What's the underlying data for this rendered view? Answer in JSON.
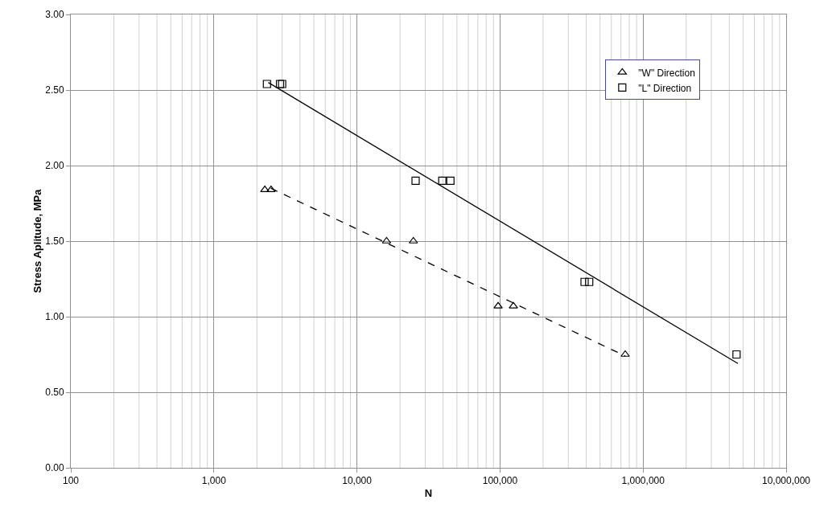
{
  "chart_data": {
    "type": "scatter",
    "xlabel": "N",
    "ylabel": "Stress Aplitude, MPa",
    "log": "x",
    "grid": true,
    "legend": "top right",
    "xlim": [
      100,
      10000000
    ],
    "xticks": [
      {
        "value": 100,
        "label": "100"
      },
      {
        "value": 1000,
        "label": "1,000"
      },
      {
        "value": 10000,
        "label": "10,000"
      },
      {
        "value": 100000,
        "label": "100,000"
      },
      {
        "value": 1000000,
        "label": "1,000,000"
      },
      {
        "value": 10000000,
        "label": "10,000,000"
      }
    ],
    "ylim": [
      0,
      3
    ],
    "yticks": [
      {
        "value": 0,
        "label": "0.00"
      },
      {
        "value": 0.5,
        "label": "0.50"
      },
      {
        "value": 1,
        "label": "1.00"
      },
      {
        "value": 1.5,
        "label": "1.50"
      },
      {
        "value": 2,
        "label": "2.00"
      },
      {
        "value": 2.5,
        "label": "2.50"
      },
      {
        "value": 3,
        "label": "3.00"
      }
    ],
    "series": [
      {
        "name": "\"W\" Direction",
        "marker": "triangle",
        "color": "#000000",
        "x": [
          2270,
          2510,
          16100,
          24800,
          97000,
          124000,
          750000
        ],
        "values": [
          1.84,
          1.84,
          1.5,
          1.5,
          1.07,
          1.07,
          0.75
        ]
      },
      {
        "name": "\"L\" Direction",
        "marker": "square",
        "color": "#000000",
        "x": [
          2350,
          2900,
          3000,
          25700,
          39500,
          45000,
          390000,
          420000,
          4500000
        ],
        "values": [
          2.54,
          2.54,
          2.54,
          1.9,
          1.9,
          1.9,
          1.23,
          1.23,
          0.75
        ]
      },
      {
        "type": "line",
        "line_style": "dashed",
        "color": "#000000",
        "x": [
          2500,
          750000
        ],
        "values": [
          1.85,
          0.74
        ]
      },
      {
        "type": "line",
        "line_style": "solid",
        "color": "#000000",
        "x": [
          2400,
          4600000
        ],
        "values": [
          2.55,
          0.69
        ]
      }
    ]
  }
}
